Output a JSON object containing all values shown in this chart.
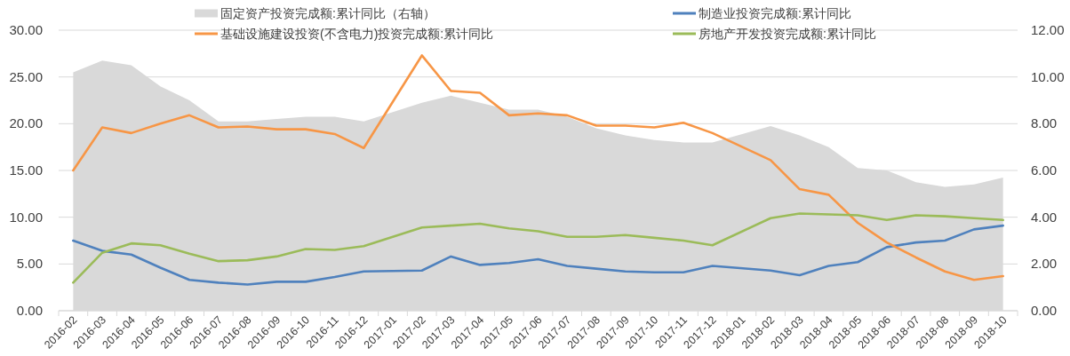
{
  "chart_data": {
    "type": "line",
    "categories": [
      "2016-02",
      "2016-03",
      "2016-04",
      "2016-05",
      "2016-06",
      "2016-07",
      "2016-08",
      "2016-09",
      "2016-10",
      "2016-11",
      "2016-12",
      "2017-01",
      "2017-02",
      "2017-03",
      "2017-04",
      "2017-05",
      "2017-06",
      "2017-07",
      "2017-08",
      "2017-09",
      "2017-10",
      "2017-11",
      "2017-12",
      "2018-01",
      "2018-02",
      "2018-03",
      "2018-04",
      "2018-05",
      "2018-06",
      "2018-07",
      "2018-08",
      "2018-09",
      "2018-10"
    ],
    "series": [
      {
        "name": "固定资产投资完成额:累计同比（右轴）",
        "type": "area",
        "axis": "y2",
        "color": "#d9d9d9",
        "values": [
          10.2,
          10.7,
          10.5,
          9.6,
          9.0,
          8.1,
          8.1,
          8.2,
          8.3,
          8.3,
          8.1,
          null,
          8.9,
          9.2,
          8.9,
          8.6,
          8.6,
          8.3,
          7.8,
          7.5,
          7.3,
          7.2,
          7.2,
          null,
          7.9,
          7.5,
          7.0,
          6.1,
          6.0,
          5.5,
          5.3,
          5.4,
          5.7
        ]
      },
      {
        "name": "制造业投资完成额:累计同比",
        "type": "line",
        "color": "#4f81bd",
        "values": [
          7.5,
          6.4,
          6.0,
          4.6,
          3.3,
          3.0,
          2.8,
          3.1,
          3.1,
          3.6,
          4.2,
          null,
          4.3,
          5.8,
          4.9,
          5.1,
          5.5,
          4.8,
          4.5,
          4.2,
          4.1,
          4.1,
          4.8,
          null,
          4.3,
          3.8,
          4.8,
          5.2,
          6.8,
          7.3,
          7.5,
          8.7,
          9.1
        ]
      },
      {
        "name": "基础设施建设投资(不含电力)投资完成额:累计同比",
        "type": "line",
        "color": "#f79646",
        "values": [
          15.0,
          19.6,
          19.0,
          20.0,
          20.9,
          19.6,
          19.7,
          19.4,
          19.4,
          18.9,
          17.4,
          null,
          27.3,
          23.5,
          23.3,
          20.9,
          21.1,
          20.9,
          19.8,
          19.8,
          19.6,
          20.1,
          19.0,
          null,
          16.1,
          13.0,
          12.4,
          9.4,
          7.3,
          5.7,
          4.2,
          3.3,
          3.7
        ]
      },
      {
        "name": "房地产开发投资完成额:累计同比",
        "type": "line",
        "color": "#9bbb59",
        "values": [
          3.0,
          6.2,
          7.2,
          7.0,
          6.1,
          5.3,
          5.4,
          5.8,
          6.6,
          6.5,
          6.9,
          null,
          8.9,
          9.1,
          9.3,
          8.8,
          8.5,
          7.9,
          7.9,
          8.1,
          7.8,
          7.5,
          7.0,
          null,
          9.9,
          10.4,
          10.3,
          10.2,
          9.7,
          10.2,
          10.1,
          9.9,
          9.7
        ]
      }
    ],
    "ylim": [
      0,
      30
    ],
    "yticks": [
      {
        "value": 0,
        "label": "0.00"
      },
      {
        "value": 5,
        "label": "5.00"
      },
      {
        "value": 10,
        "label": "10.00"
      },
      {
        "value": 15,
        "label": "15.00"
      },
      {
        "value": 20,
        "label": "20.00"
      },
      {
        "value": 25,
        "label": "25.00"
      },
      {
        "value": 30,
        "label": "30.00"
      }
    ],
    "y2lim": [
      0,
      12
    ],
    "y2ticks": [
      {
        "value": 0,
        "label": "0.00"
      },
      {
        "value": 2,
        "label": "2.00"
      },
      {
        "value": 4,
        "label": "4.00"
      },
      {
        "value": 6,
        "label": "6.00"
      },
      {
        "value": 8,
        "label": "8.00"
      },
      {
        "value": 10,
        "label": "10.00"
      },
      {
        "value": 12,
        "label": "12.00"
      }
    ],
    "grid": "y",
    "legend": "top"
  }
}
